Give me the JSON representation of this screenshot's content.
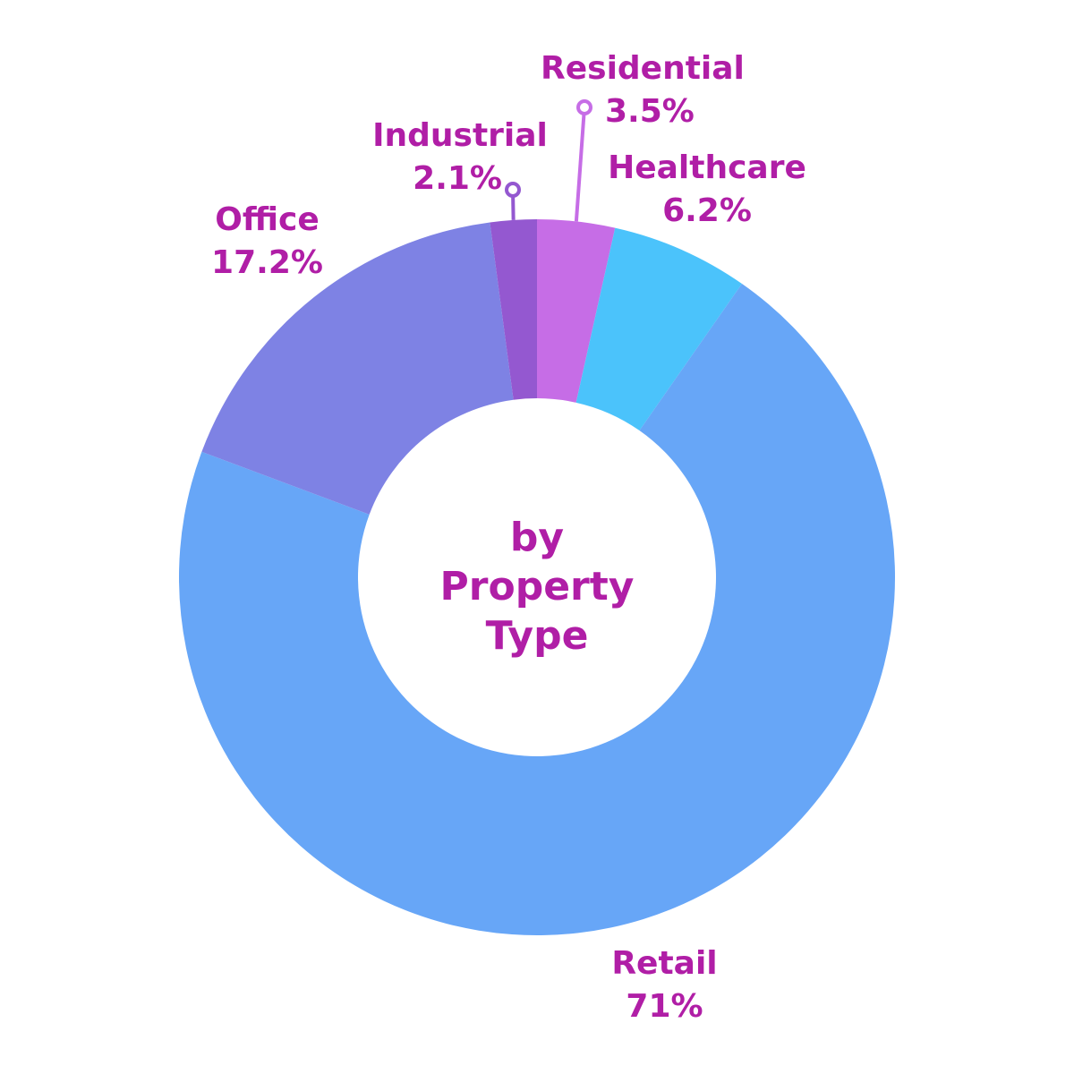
{
  "chart_data": {
    "type": "pie",
    "style": "donut",
    "center_label": [
      "by",
      "Property",
      "Type"
    ],
    "label_color": "#b01ea6",
    "slices": [
      {
        "name": "Residential",
        "value": 3.5,
        "value_label": "3.5%",
        "color": "#c66de6"
      },
      {
        "name": "Healthcare",
        "value": 6.2,
        "value_label": "6.2%",
        "color": "#4bc3fb"
      },
      {
        "name": "Retail",
        "value": 71,
        "value_label": "71%",
        "color": "#67a6f7"
      },
      {
        "name": "Office",
        "value": 17.2,
        "value_label": "17.2%",
        "color": "#7e82e4"
      },
      {
        "name": "Industrial",
        "value": 2.1,
        "value_label": "2.1%",
        "color": "#9458d0"
      }
    ]
  }
}
